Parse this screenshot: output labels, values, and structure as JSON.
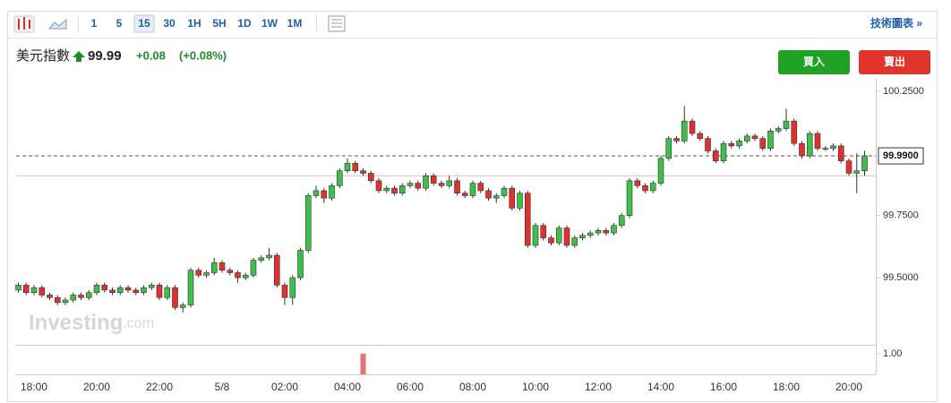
{
  "toolbar": {
    "intervals": [
      "1",
      "5",
      "15",
      "30",
      "1H",
      "5H",
      "1D",
      "1W",
      "1M"
    ],
    "active": "15",
    "link": "技術圖表 »"
  },
  "header": {
    "title": "美元指數",
    "price": "99.99",
    "change": "+0.08",
    "change_pct": "(+0.08%)",
    "buy": "買入",
    "sell": "賣出"
  },
  "watermark": {
    "brand": "Investing",
    "suffix": ".com"
  },
  "chart_data": {
    "type": "candlestick",
    "categories": [
      null,
      null,
      "18:00",
      null,
      null,
      null,
      null,
      null,
      null,
      null,
      "20:00",
      null,
      null,
      null,
      null,
      null,
      null,
      null,
      "22:00",
      null,
      null,
      null,
      null,
      null,
      null,
      null,
      "5/8",
      null,
      null,
      null,
      null,
      null,
      null,
      null,
      "02:00",
      null,
      null,
      null,
      null,
      null,
      null,
      null,
      "04:00",
      null,
      null,
      null,
      null,
      null,
      null,
      null,
      "06:00",
      null,
      null,
      null,
      null,
      null,
      null,
      null,
      "08:00",
      null,
      null,
      null,
      null,
      null,
      null,
      null,
      "10:00",
      null,
      null,
      null,
      null,
      null,
      null,
      null,
      "12:00",
      null,
      null,
      null,
      null,
      null,
      null,
      null,
      "14:00",
      null,
      null,
      null,
      null,
      null,
      null,
      null,
      "16:00",
      null,
      null,
      null,
      null,
      null,
      null,
      null,
      "18:00",
      null,
      null,
      null,
      null,
      null,
      null,
      null,
      "20:00",
      null,
      null
    ],
    "open": [
      99.45,
      99.47,
      99.44,
      99.46,
      99.43,
      99.42,
      99.4,
      99.41,
      99.43,
      99.42,
      99.44,
      99.47,
      99.45,
      99.44,
      99.46,
      99.45,
      99.44,
      99.46,
      99.47,
      99.42,
      99.46,
      99.38,
      99.39,
      99.53,
      99.51,
      99.52,
      99.56,
      99.53,
      99.52,
      99.5,
      99.51,
      99.57,
      99.58,
      99.59,
      99.47,
      99.42,
      99.5,
      99.61,
      99.83,
      99.85,
      99.82,
      99.87,
      99.93,
      99.96,
      99.93,
      99.92,
      99.89,
      99.85,
      99.86,
      99.84,
      99.87,
      99.88,
      99.86,
      99.91,
      99.88,
      99.87,
      99.89,
      99.84,
      99.83,
      99.88,
      99.85,
      99.82,
      99.83,
      99.86,
      99.78,
      99.84,
      99.63,
      99.71,
      99.66,
      99.64,
      99.7,
      99.63,
      99.66,
      99.67,
      99.68,
      99.69,
      99.68,
      99.71,
      99.75,
      99.89,
      99.87,
      99.85,
      99.88,
      99.98,
      100.06,
      100.05,
      100.13,
      100.08,
      100.06,
      100.01,
      99.97,
      100.04,
      100.03,
      100.05,
      100.07,
      100.06,
      100.02,
      100.09,
      100.1,
      100.13,
      100.04,
      99.99,
      100.08,
      100.02,
      100.02,
      100.03,
      99.97,
      99.92,
      99.93
    ],
    "high": [
      99.48,
      99.48,
      99.47,
      99.47,
      99.44,
      99.43,
      99.42,
      99.44,
      99.44,
      99.45,
      99.48,
      99.48,
      99.46,
      99.47,
      99.47,
      99.46,
      99.47,
      99.48,
      99.48,
      99.47,
      99.47,
      99.4,
      99.54,
      99.54,
      99.53,
      99.58,
      99.57,
      99.54,
      99.53,
      99.52,
      99.58,
      99.59,
      99.62,
      99.6,
      99.48,
      99.51,
      99.62,
      99.84,
      99.87,
      99.86,
      99.88,
      99.94,
      99.98,
      99.97,
      99.94,
      99.93,
      99.9,
      99.87,
      99.87,
      99.88,
      99.89,
      99.89,
      99.92,
      99.92,
      99.89,
      99.91,
      99.9,
      99.85,
      99.89,
      99.89,
      99.86,
      99.84,
      99.87,
      99.87,
      99.85,
      99.85,
      99.72,
      99.72,
      99.67,
      99.71,
      99.71,
      99.67,
      99.68,
      99.69,
      99.7,
      99.7,
      99.72,
      99.76,
      99.9,
      99.9,
      99.88,
      99.89,
      99.99,
      100.07,
      100.07,
      100.19,
      100.14,
      100.09,
      100.07,
      100.02,
      100.05,
      100.05,
      100.06,
      100.08,
      100.08,
      100.07,
      100.1,
      100.11,
      100.18,
      100.14,
      100.05,
      100.09,
      100.09,
      100.03,
      100.04,
      100.04,
      99.98,
      100.0,
      100.01
    ],
    "low": [
      99.44,
      99.43,
      99.43,
      99.42,
      99.41,
      99.39,
      99.39,
      99.4,
      99.41,
      99.41,
      99.43,
      99.44,
      99.43,
      99.43,
      99.44,
      99.43,
      99.43,
      99.45,
      99.41,
      99.41,
      99.37,
      99.36,
      99.38,
      99.5,
      99.5,
      99.51,
      99.52,
      99.51,
      99.48,
      99.49,
      99.5,
      99.56,
      99.57,
      99.46,
      99.39,
      99.39,
      99.49,
      99.6,
      99.82,
      99.8,
      99.81,
      99.86,
      99.92,
      99.92,
      99.91,
      99.88,
      99.84,
      99.84,
      99.83,
      99.83,
      99.86,
      99.85,
      99.85,
      99.87,
      99.86,
      99.86,
      99.83,
      99.82,
      99.82,
      99.84,
      99.81,
      99.8,
      99.82,
      99.77,
      99.77,
      99.62,
      99.62,
      99.65,
      99.63,
      99.63,
      99.62,
      99.62,
      99.65,
      99.66,
      99.67,
      99.67,
      99.67,
      99.7,
      99.74,
      99.86,
      99.84,
      99.84,
      99.87,
      99.97,
      100.04,
      100.04,
      100.07,
      100.05,
      100.0,
      99.96,
      99.96,
      100.02,
      100.02,
      100.04,
      100.05,
      100.01,
      100.01,
      100.08,
      100.09,
      100.03,
      99.98,
      99.98,
      100.01,
      100.01,
      100.01,
      99.96,
      99.91,
      99.84,
      99.91
    ],
    "close": [
      99.47,
      99.44,
      99.46,
      99.43,
      99.42,
      99.4,
      99.41,
      99.43,
      99.42,
      99.44,
      99.47,
      99.45,
      99.44,
      99.46,
      99.45,
      99.44,
      99.46,
      99.47,
      99.42,
      99.46,
      99.38,
      99.39,
      99.53,
      99.51,
      99.52,
      99.56,
      99.53,
      99.52,
      99.5,
      99.51,
      99.57,
      99.58,
      99.59,
      99.47,
      99.42,
      99.5,
      99.61,
      99.83,
      99.85,
      99.82,
      99.87,
      99.93,
      99.96,
      99.93,
      99.92,
      99.89,
      99.85,
      99.86,
      99.84,
      99.87,
      99.88,
      99.86,
      99.91,
      99.88,
      99.87,
      99.89,
      99.84,
      99.83,
      99.88,
      99.85,
      99.82,
      99.83,
      99.86,
      99.78,
      99.84,
      99.63,
      99.71,
      99.66,
      99.64,
      99.7,
      99.63,
      99.66,
      99.67,
      99.68,
      99.69,
      99.68,
      99.71,
      99.75,
      99.89,
      99.87,
      99.85,
      99.88,
      99.98,
      100.06,
      100.05,
      100.13,
      100.08,
      100.06,
      100.01,
      99.97,
      100.04,
      100.03,
      100.05,
      100.07,
      100.06,
      100.02,
      100.09,
      100.1,
      100.13,
      100.04,
      99.99,
      100.08,
      100.02,
      100.02,
      100.03,
      99.97,
      99.92,
      99.93,
      99.99
    ],
    "up_color": "#3fbf4a",
    "down_color": "#e03131",
    "ylim": [
      99.23,
      100.3
    ],
    "yticks": [
      {
        "value": 99.5,
        "label": "99.5000"
      },
      {
        "value": 99.75,
        "label": "99.7500"
      },
      {
        "value": 100.25,
        "label": "100.2500"
      }
    ],
    "last_price": {
      "value": 99.99,
      "label": "99.9900"
    },
    "reference_line": 99.91,
    "volume": {
      "values": [
        null,
        null,
        null,
        null,
        null,
        null,
        null,
        null,
        null,
        null,
        null,
        null,
        null,
        null,
        null,
        null,
        null,
        null,
        null,
        null,
        null,
        null,
        null,
        null,
        null,
        null,
        null,
        null,
        null,
        null,
        null,
        null,
        null,
        null,
        null,
        null,
        null,
        null,
        null,
        null,
        null,
        null,
        null,
        null,
        1,
        null,
        null,
        null,
        null,
        null,
        null,
        null,
        null,
        null,
        null,
        null,
        null,
        null,
        null,
        null,
        null,
        null,
        null,
        null,
        null,
        null,
        null,
        null,
        null,
        null,
        null,
        null,
        null,
        null,
        null,
        null,
        null,
        null,
        null,
        null,
        null,
        null,
        null,
        null,
        null,
        null,
        null,
        null,
        null,
        null,
        null,
        null,
        null,
        null,
        null,
        null,
        null,
        null,
        null,
        null,
        null,
        null,
        null,
        null,
        null,
        null,
        null,
        null,
        null
      ],
      "color": "#e57373",
      "ylim": [
        0,
        1.43
      ],
      "yticks": [
        {
          "value": 1,
          "label": "1.00"
        }
      ]
    }
  }
}
